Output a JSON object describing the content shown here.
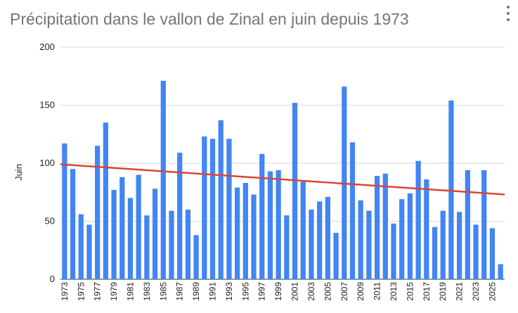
{
  "menu": {
    "icon": "more-vert-icon"
  },
  "chart_data": {
    "type": "bar",
    "title": "Précipitation dans le vallon de Zinal en juin depuis 1973",
    "xlabel": "",
    "ylabel": "Juin",
    "ylim": [
      0,
      200
    ],
    "yticks": [
      0,
      50,
      100,
      150,
      200
    ],
    "grid": true,
    "legend": "none",
    "bar_color": "#4285f4",
    "trendline_color": "#db4437",
    "categories": [
      "1973",
      "1974",
      "1975",
      "1976",
      "1977",
      "1978",
      "1979",
      "1980",
      "1981",
      "1982",
      "1983",
      "1984",
      "1985",
      "1986",
      "1987",
      "1988",
      "1989",
      "1990",
      "1991",
      "1992",
      "1993",
      "1994",
      "1995",
      "1996",
      "1997",
      "1998",
      "1999",
      "2000",
      "2001",
      "2002",
      "2003",
      "2004",
      "2005",
      "2006",
      "2007",
      "2008",
      "2009",
      "2010",
      "2011",
      "2012",
      "2013",
      "2014",
      "2015",
      "2016",
      "2017",
      "2018",
      "2019",
      "2020",
      "2021",
      "2022",
      "2023",
      "2024",
      "2025",
      "2026"
    ],
    "tick_labels": [
      "1973",
      "1975",
      "1977",
      "1979",
      "1981",
      "1983",
      "1985",
      "1987",
      "1989",
      "1991",
      "1993",
      "1995",
      "1997",
      "1999",
      "2001",
      "2003",
      "2005",
      "2007",
      "2009",
      "2011",
      "2013",
      "2015",
      "2017",
      "2019",
      "2021",
      "2023",
      "2025"
    ],
    "values": [
      117,
      95,
      56,
      47,
      115,
      135,
      77,
      88,
      70,
      90,
      55,
      78,
      171,
      59,
      109,
      60,
      38,
      123,
      121,
      137,
      121,
      79,
      83,
      73,
      108,
      93,
      94,
      55,
      152,
      84,
      60,
      67,
      71,
      40,
      166,
      118,
      68,
      59,
      89,
      91,
      48,
      69,
      74,
      102,
      86,
      45,
      59,
      154,
      58,
      94,
      47,
      94,
      44,
      13
    ],
    "trendline": {
      "start": 99,
      "end": 73
    }
  }
}
